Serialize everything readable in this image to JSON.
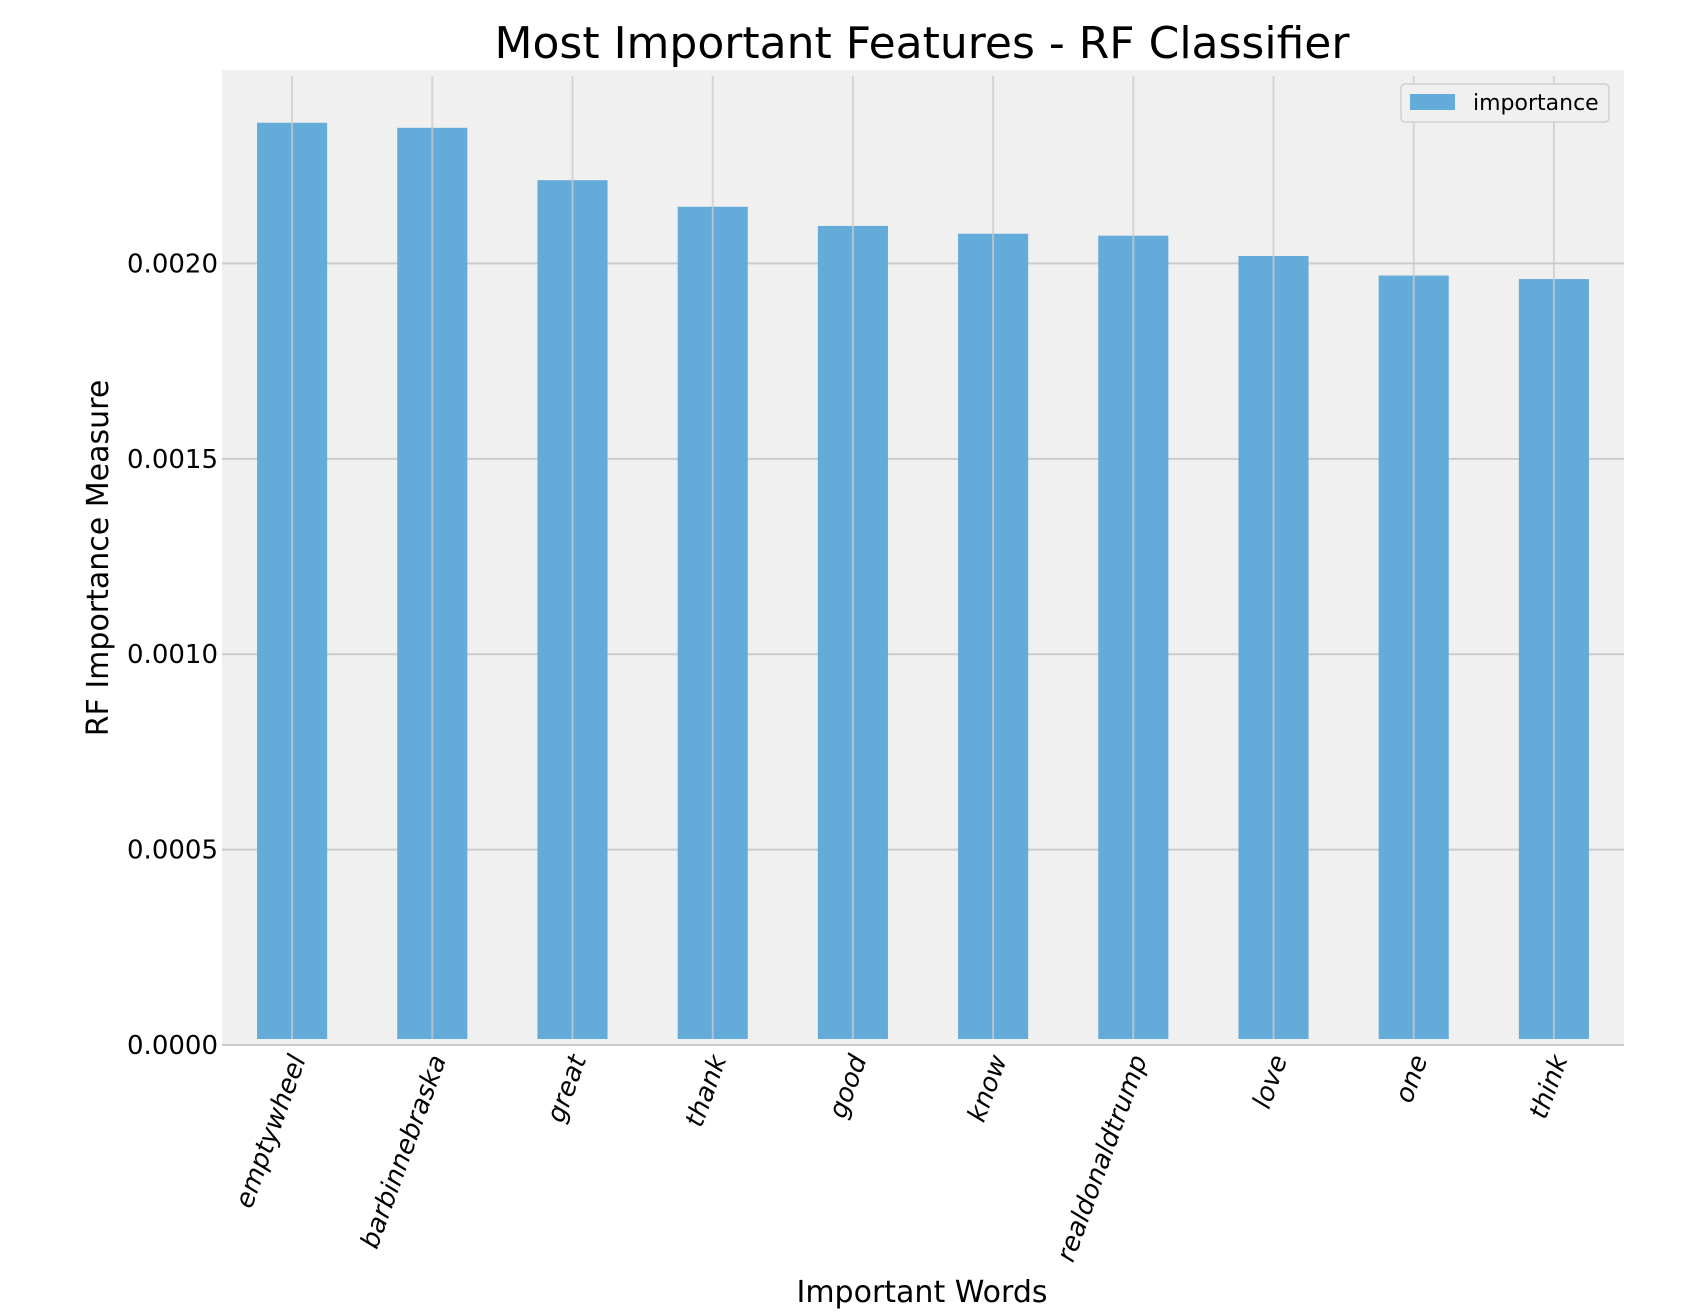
{
  "chart_data": {
    "type": "bar",
    "title": "Most Important Features - RF Classifier",
    "xlabel": "Important Words",
    "ylabel": "RF Importance Measure",
    "categories": [
      "emptywheel",
      "barbinnebraska",
      "great",
      "thank",
      "good",
      "know",
      "realdonaldtrump",
      "love",
      "one",
      "think"
    ],
    "series": [
      {
        "name": "importance",
        "values": [
          0.00236,
          0.002347,
          0.002213,
          0.002145,
          0.002096,
          0.002076,
          0.002071,
          0.002019,
          0.001969,
          0.00196
        ]
      }
    ],
    "ylim": [
      0,
      0.002495
    ],
    "yticks": [
      0.0,
      0.0005,
      0.001,
      0.0015,
      0.002
    ],
    "ytick_labels": [
      "0.0000",
      "0.0005",
      "0.0010",
      "0.0015",
      "0.0020"
    ],
    "grid": true,
    "legend_position": "top-right",
    "colors": {
      "bar": "#63abd8",
      "plot_background": "#f0f0f0",
      "grid": "#cbcbcb"
    }
  }
}
